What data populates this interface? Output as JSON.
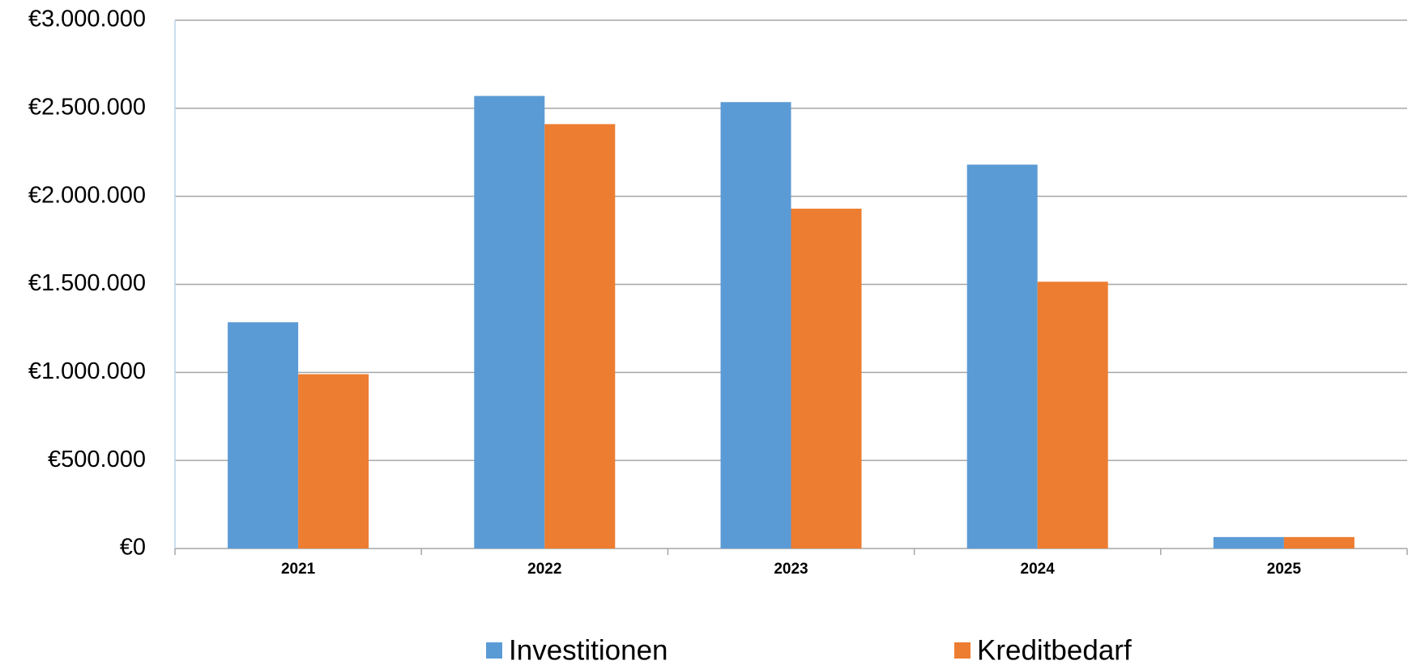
{
  "chart_data": {
    "type": "bar",
    "categories": [
      "2021",
      "2022",
      "2023",
      "2024",
      "2025"
    ],
    "series": [
      {
        "name": "Investitionen",
        "color": "#5b9bd5",
        "values": [
          1285000,
          2570000,
          2535000,
          2180000,
          65000
        ]
      },
      {
        "name": "Kreditbedarf",
        "color": "#ed7d31",
        "values": [
          990000,
          2410000,
          1930000,
          1515000,
          65000
        ]
      }
    ],
    "ylim": [
      0,
      3000000
    ],
    "yticks": [
      {
        "value": 0,
        "label": "€0"
      },
      {
        "value": 500000,
        "label": "€500.000"
      },
      {
        "value": 1000000,
        "label": "€1.000.000"
      },
      {
        "value": 1500000,
        "label": "€1.500.000"
      },
      {
        "value": 2000000,
        "label": "€2.000.000"
      },
      {
        "value": 2500000,
        "label": "€2.500.000"
      },
      {
        "value": 3000000,
        "label": "€3.000.000"
      }
    ],
    "grid": true,
    "legend": "bottom"
  }
}
